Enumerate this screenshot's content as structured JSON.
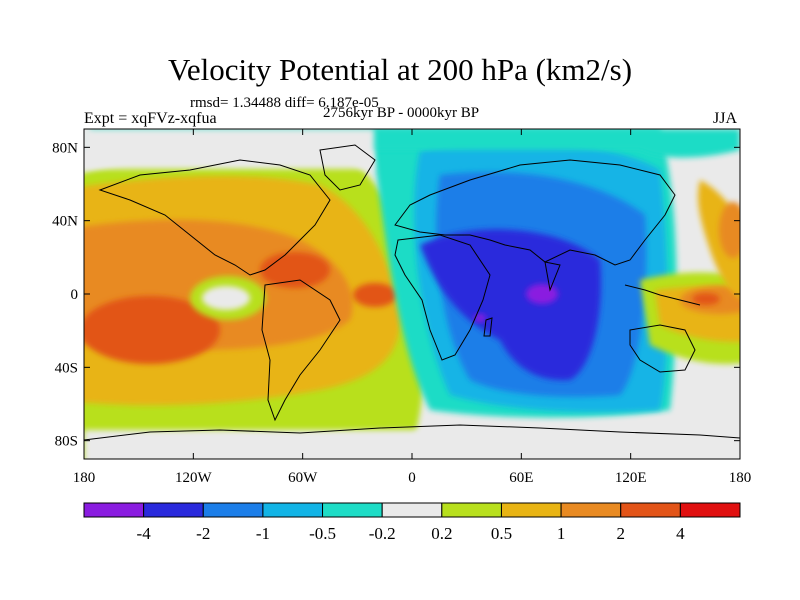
{
  "title": "Velocity Potential at 200 hPa (km2/s)",
  "stats": "rmsd= 1.34488 diff= 6.187e-05",
  "experiment": "Expt = xqFVz-xqfua",
  "period": "2756kyr BP - 0000kyr BP",
  "season": "JJA",
  "lon_ticks": [
    "180",
    "120W",
    "60W",
    "0",
    "60E",
    "120E",
    "180"
  ],
  "lat_ticks": [
    "80N",
    "40N",
    "0",
    "40S",
    "80S"
  ],
  "colorbar": {
    "colors": [
      "#8a1ce0",
      "#2a2adc",
      "#1c7ee8",
      "#12b4e6",
      "#1edcc6",
      "#eaeaea",
      "#b8e01e",
      "#e8b414",
      "#e88a22",
      "#e25418",
      "#e01010"
    ],
    "labels": [
      "-4",
      "-2",
      "-1",
      "-0.5",
      "-0.2",
      "0.2",
      "0.5",
      "1",
      "2",
      "4"
    ]
  }
}
